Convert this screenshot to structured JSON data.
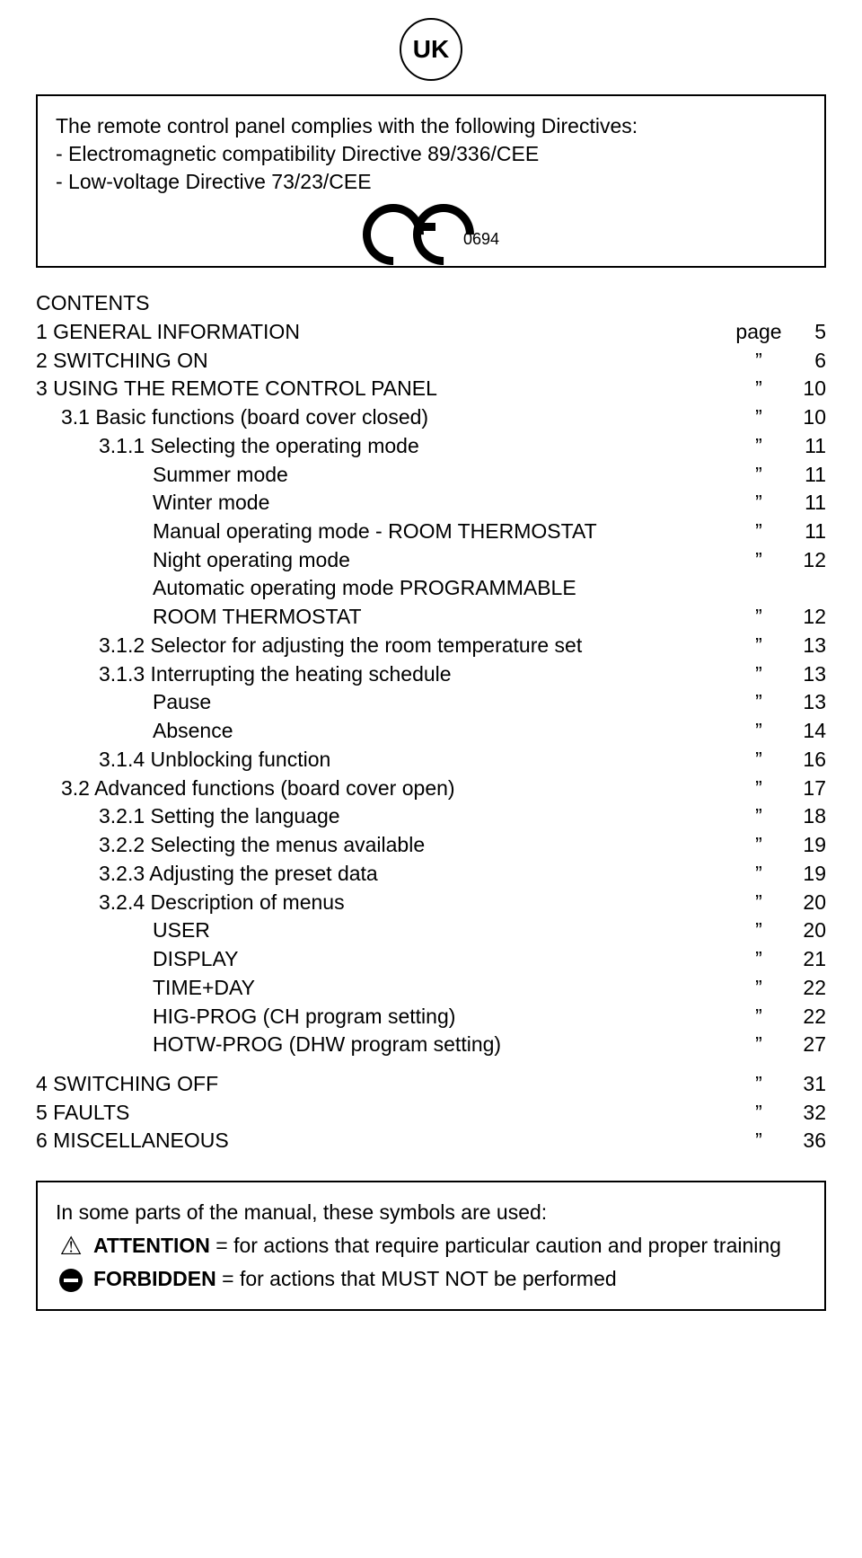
{
  "badge": "UK",
  "compliance": {
    "intro": "The remote control panel complies with the following Directives:",
    "line1": "- Electromagnetic compatibility Directive 89/336/CEE",
    "line2": "- Low-voltage Directive 73/23/CEE",
    "ce_number": "0694"
  },
  "contents_title": "CONTENTS",
  "page_word": "page",
  "ditto": "”",
  "toc": [
    {
      "label": "1 GENERAL INFORMATION",
      "indent": 0,
      "page_prefix": "page",
      "page": "5"
    },
    {
      "label": "2 SWITCHING ON",
      "indent": 0,
      "page": "6"
    },
    {
      "label": "3 USING THE REMOTE CONTROL PANEL",
      "indent": 0,
      "page": "10"
    },
    {
      "label": "3.1 Basic functions (board cover closed)",
      "indent": 1,
      "page": "10"
    },
    {
      "label": "3.1.1 Selecting the operating mode",
      "indent": 2,
      "page": "11"
    },
    {
      "label": "Summer mode",
      "indent": 3,
      "page": "11"
    },
    {
      "label": "Winter mode",
      "indent": 3,
      "page": "11"
    },
    {
      "label": "Manual operating mode - ROOM THERMOSTAT",
      "indent": 3,
      "page": "11"
    },
    {
      "label": "Night operating mode",
      "indent": 3,
      "page": "12"
    },
    {
      "label": "Automatic operating mode PROGRAMMABLE",
      "indent": 3,
      "page": ""
    },
    {
      "label": "ROOM THERMOSTAT",
      "indent": 3,
      "page": "12"
    },
    {
      "label": "3.1.2 Selector for adjusting the room temperature set",
      "indent": 2,
      "page": "13"
    },
    {
      "label": "3.1.3 Interrupting the heating schedule",
      "indent": 2,
      "page": "13"
    },
    {
      "label": "Pause",
      "indent": 3,
      "page": "13"
    },
    {
      "label": "Absence",
      "indent": 3,
      "page": "14"
    },
    {
      "label": "3.1.4 Unblocking function",
      "indent": 2,
      "page": "16"
    },
    {
      "label": "3.2 Advanced functions (board cover open)",
      "indent": 1,
      "page": "17"
    },
    {
      "label": "3.2.1 Setting the language",
      "indent": 2,
      "page": "18"
    },
    {
      "label": "3.2.2 Selecting the menus available",
      "indent": 2,
      "page": "19"
    },
    {
      "label": "3.2.3 Adjusting the preset data",
      "indent": 2,
      "page": "19"
    },
    {
      "label": "3.2.4 Description of menus",
      "indent": 2,
      "page": "20"
    },
    {
      "label": "USER",
      "indent": 3,
      "page": "20"
    },
    {
      "label": "DISPLAY",
      "indent": 3,
      "page": "21"
    },
    {
      "label": "TIME+DAY",
      "indent": 3,
      "page": "22"
    },
    {
      "label": "HIG-PROG (CH program setting)",
      "indent": 3,
      "page": "22"
    },
    {
      "label": "HOTW-PROG (DHW program setting)",
      "indent": 3,
      "page": "27"
    }
  ],
  "toc_bottom": [
    {
      "label": "4 SWITCHING OFF",
      "indent": 0,
      "page": "31"
    },
    {
      "label": "5 FAULTS",
      "indent": 0,
      "page": "32"
    },
    {
      "label": "6 MISCELLANEOUS",
      "indent": 0,
      "page": "36"
    }
  ],
  "symbols": {
    "intro": "In some parts of the manual, these symbols are used:",
    "attention_bold": "ATTENTION",
    "attention_text": " = for actions that require particular caution and proper training",
    "forbidden_bold": "FORBIDDEN",
    "forbidden_text": " = for actions that MUST NOT be performed"
  }
}
